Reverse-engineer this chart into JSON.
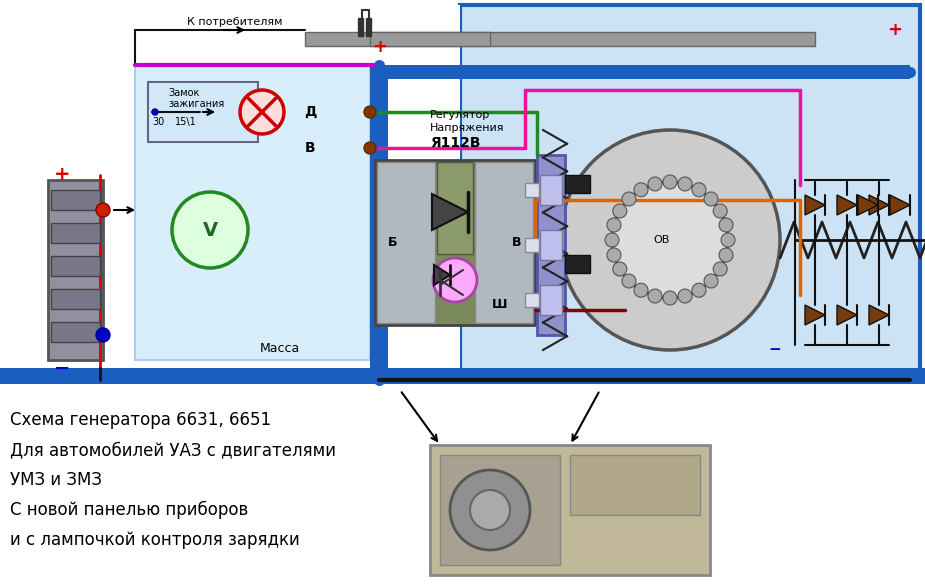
{
  "bg_color": "#ffffff",
  "diagram_bg": "#cce3f5",
  "text_lines": [
    "Схема генератора 6631, 6651",
    "Для автомобилей УАЗ с двигателями",
    "УМЗ и ЗМЗ",
    "С новой панелью приборов",
    "и с лампочкой контроля зарядки"
  ],
  "wire_colors": {
    "blue": "#1a5fbf",
    "red": "#dd0000",
    "green": "#228822",
    "pink": "#ee1199",
    "orange": "#dd6600",
    "black": "#111111",
    "gray": "#888888",
    "darkred": "#880000",
    "magenta": "#cc00cc"
  }
}
